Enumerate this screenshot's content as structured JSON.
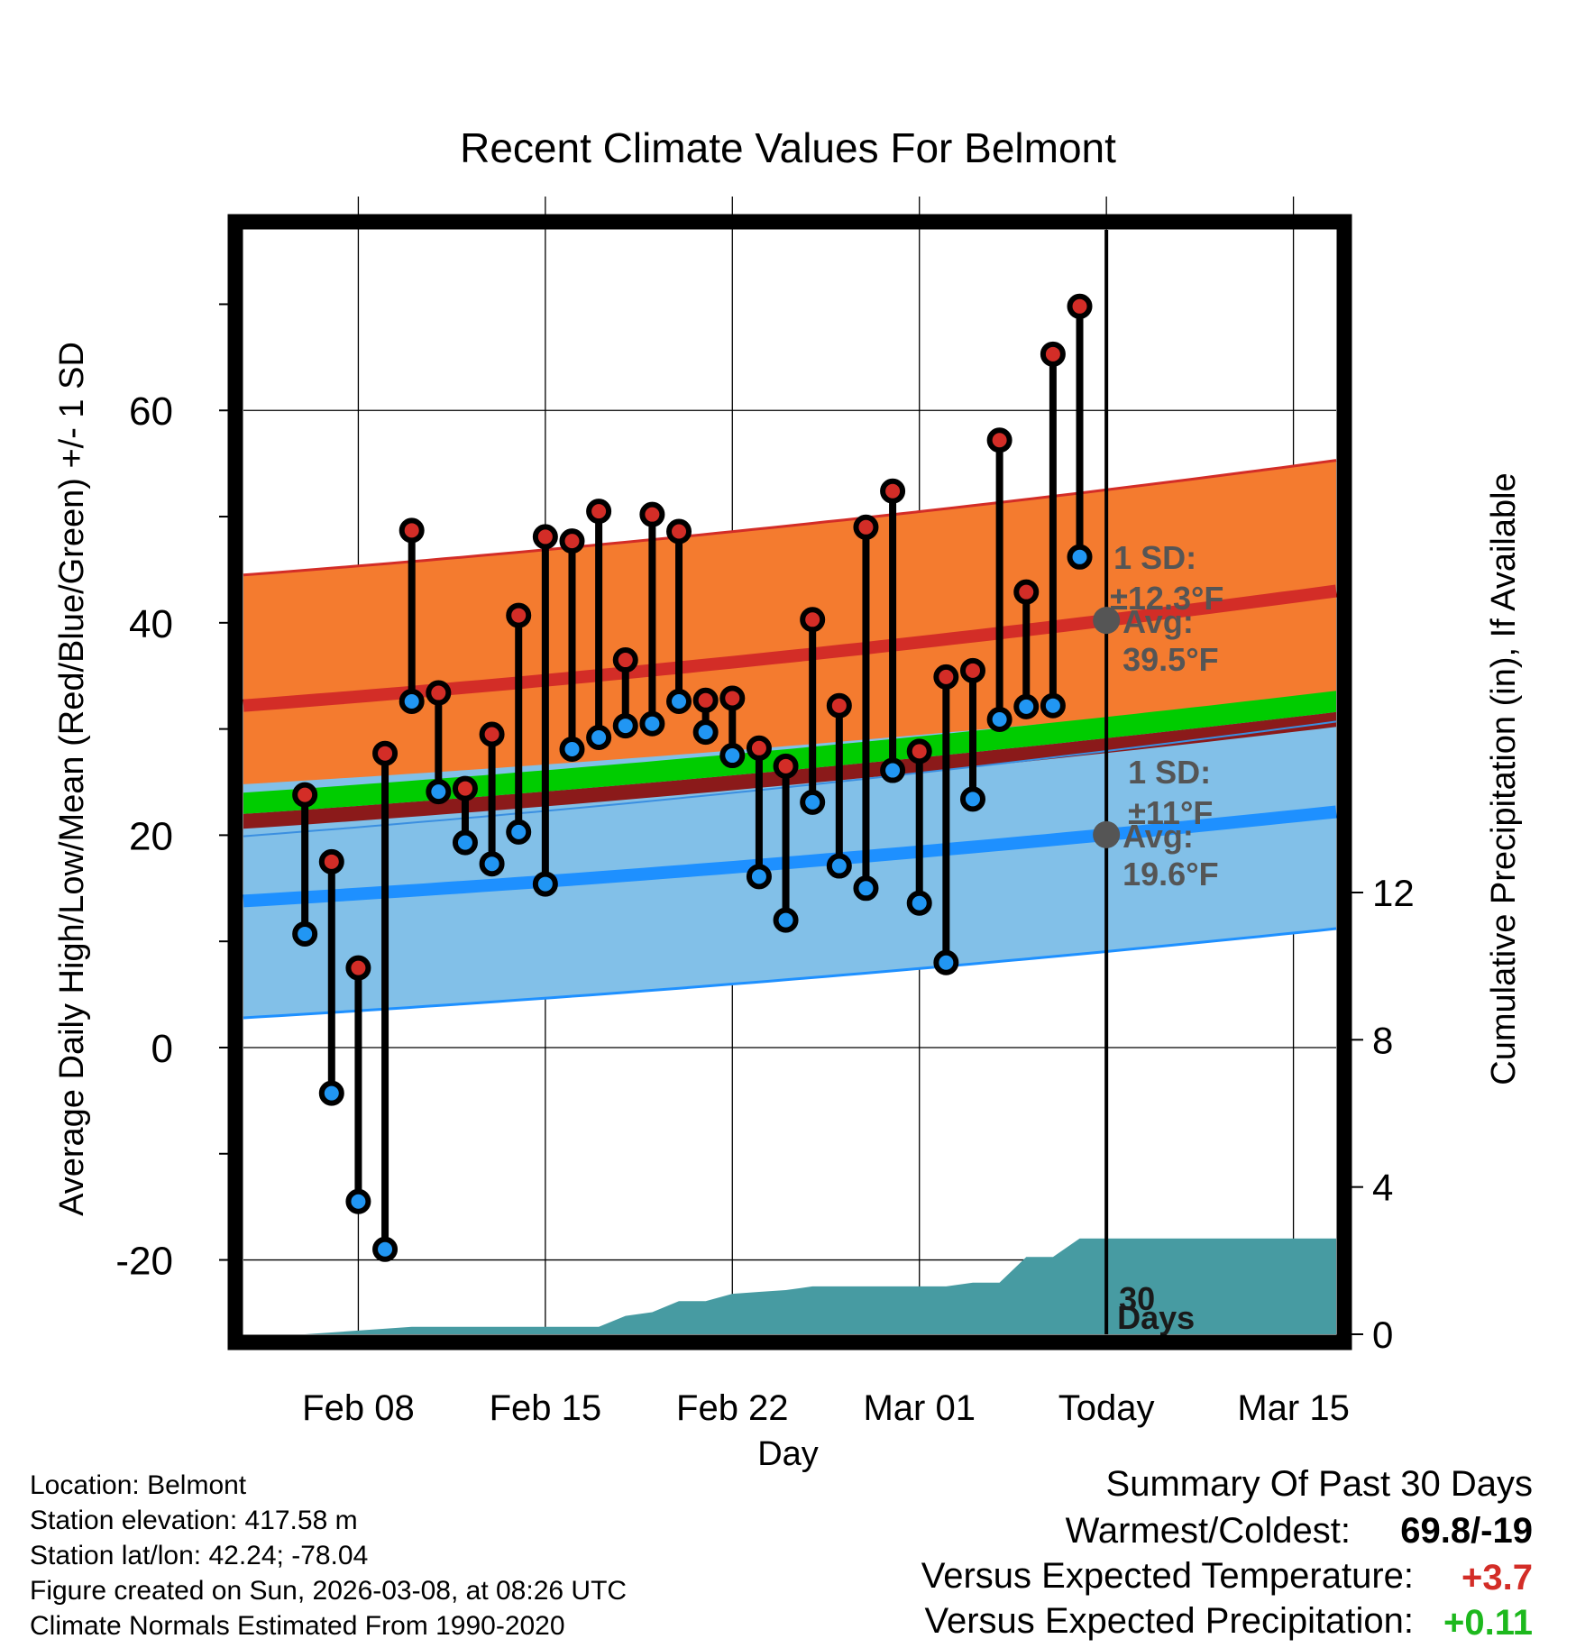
{
  "chart_data": {
    "type": "line",
    "title": "Recent Climate Values For Belmont",
    "xlabel": "Day",
    "ylabel": "Average Daily High/Low/Mean (Red/Blue/Green) +/- 1 SD",
    "y2label": "Cumulative Precipitation (in), If Available",
    "ylim": [
      -27,
      77
    ],
    "y_ticks": [
      -20,
      0,
      20,
      40,
      60
    ],
    "y_tick_labels": [
      "-20",
      "0",
      "20",
      "40",
      "60"
    ],
    "y2lim": [
      0,
      30
    ],
    "y2_ticks": [
      0,
      4,
      8,
      12
    ],
    "y2_tick_labels": [
      "0",
      "4",
      "8",
      "12"
    ],
    "xlim": [
      -32.3,
      8.6
    ],
    "x_ticks": [
      -28,
      -21,
      -14,
      -7,
      0,
      7
    ],
    "x_tick_labels": [
      "Feb 08",
      "Feb 15",
      "Feb 22",
      "Mar 01",
      "Today",
      "Mar 15"
    ],
    "today_offset": 0,
    "normal_high": {
      "start": 32.2,
      "end": 43.0,
      "sd": 12.3,
      "color": "#d32d27",
      "band_color": "#f47b2f"
    },
    "normal_low": {
      "start": 13.8,
      "end": 22.2,
      "sd": 11.0,
      "color": "#1e90ff",
      "band_color": "#82c0e8"
    },
    "normal_mean": {
      "start": 23.0,
      "end": 32.6,
      "half_width": 1.0,
      "color": "#00cc00"
    },
    "days": [
      -30,
      -29,
      -28,
      -27,
      -26,
      -25,
      -24,
      -23,
      -22,
      -21,
      -20,
      -19,
      -18,
      -17,
      -16,
      -15,
      -14,
      -13,
      -12,
      -11,
      -10,
      -9,
      -8,
      -7,
      -6,
      -5,
      -4,
      -3,
      -2,
      -1
    ],
    "highs": [
      23.8,
      17.5,
      7.5,
      27.7,
      48.7,
      33.4,
      24.4,
      29.5,
      40.7,
      48.1,
      47.7,
      50.5,
      36.5,
      50.2,
      48.6,
      32.7,
      32.9,
      28.2,
      26.5,
      40.3,
      32.2,
      49.0,
      52.4,
      27.9,
      34.9,
      35.5,
      57.2,
      42.9,
      65.3,
      69.8
    ],
    "lows": [
      10.7,
      -4.3,
      -14.5,
      -19.0,
      32.6,
      24.1,
      19.3,
      17.3,
      20.3,
      15.4,
      28.1,
      29.2,
      30.3,
      30.5,
      32.6,
      29.7,
      27.5,
      16.1,
      12.0,
      23.1,
      17.1,
      15.0,
      26.1,
      13.6,
      8.0,
      23.4,
      30.9,
      32.1,
      32.2,
      46.2
    ],
    "precip_days": [
      -30,
      -26,
      -22,
      -20,
      -19,
      -18,
      -17,
      -16,
      -15,
      -14,
      -13,
      -12,
      -11,
      -10,
      -9,
      -8,
      -7,
      -6,
      -5,
      -4,
      -3,
      -2,
      -1,
      0,
      8.6
    ],
    "precip_cum": [
      0.0,
      0.2,
      0.2,
      0.2,
      0.2,
      0.5,
      0.6,
      0.9,
      0.9,
      1.1,
      1.15,
      1.2,
      1.3,
      1.3,
      1.3,
      1.3,
      1.3,
      1.3,
      1.4,
      1.4,
      2.1,
      2.1,
      2.6,
      2.6,
      2.6
    ],
    "precip_color": "#479ba2",
    "annotations": {
      "high_sd_label": "1 SD:",
      "high_sd_value": "±12.3°F",
      "high_avg_label": "Avg:",
      "high_avg_value": "39.5°F",
      "low_sd_label": "1 SD:",
      "low_sd_value": "±11°F",
      "low_avg_label": "Avg:",
      "low_avg_value": "19.6°F",
      "period_count": "30",
      "period_unit": "Days"
    }
  },
  "footer_info": {
    "location": "Location: Belmont",
    "elevation": "Station elevation: 417.58 m",
    "latlon": "Station lat/lon: 42.24; -78.04",
    "created": "Figure created on Sun, 2026-03-08, at 08:26 UTC",
    "normals": "Climate Normals Estimated From 1990-2020"
  },
  "summary": {
    "title": "Summary Of Past 30 Days",
    "warm_cold_label": "Warmest/Coldest:",
    "warm_cold_value": "69.8/-19",
    "temp_label": "Versus Expected Temperature:",
    "temp_value": "+3.7",
    "temp_color": "#d32d27",
    "precip_label": "Versus Expected Precipitation:",
    "precip_value": "+0.11",
    "precip_color": "#1db81d"
  }
}
